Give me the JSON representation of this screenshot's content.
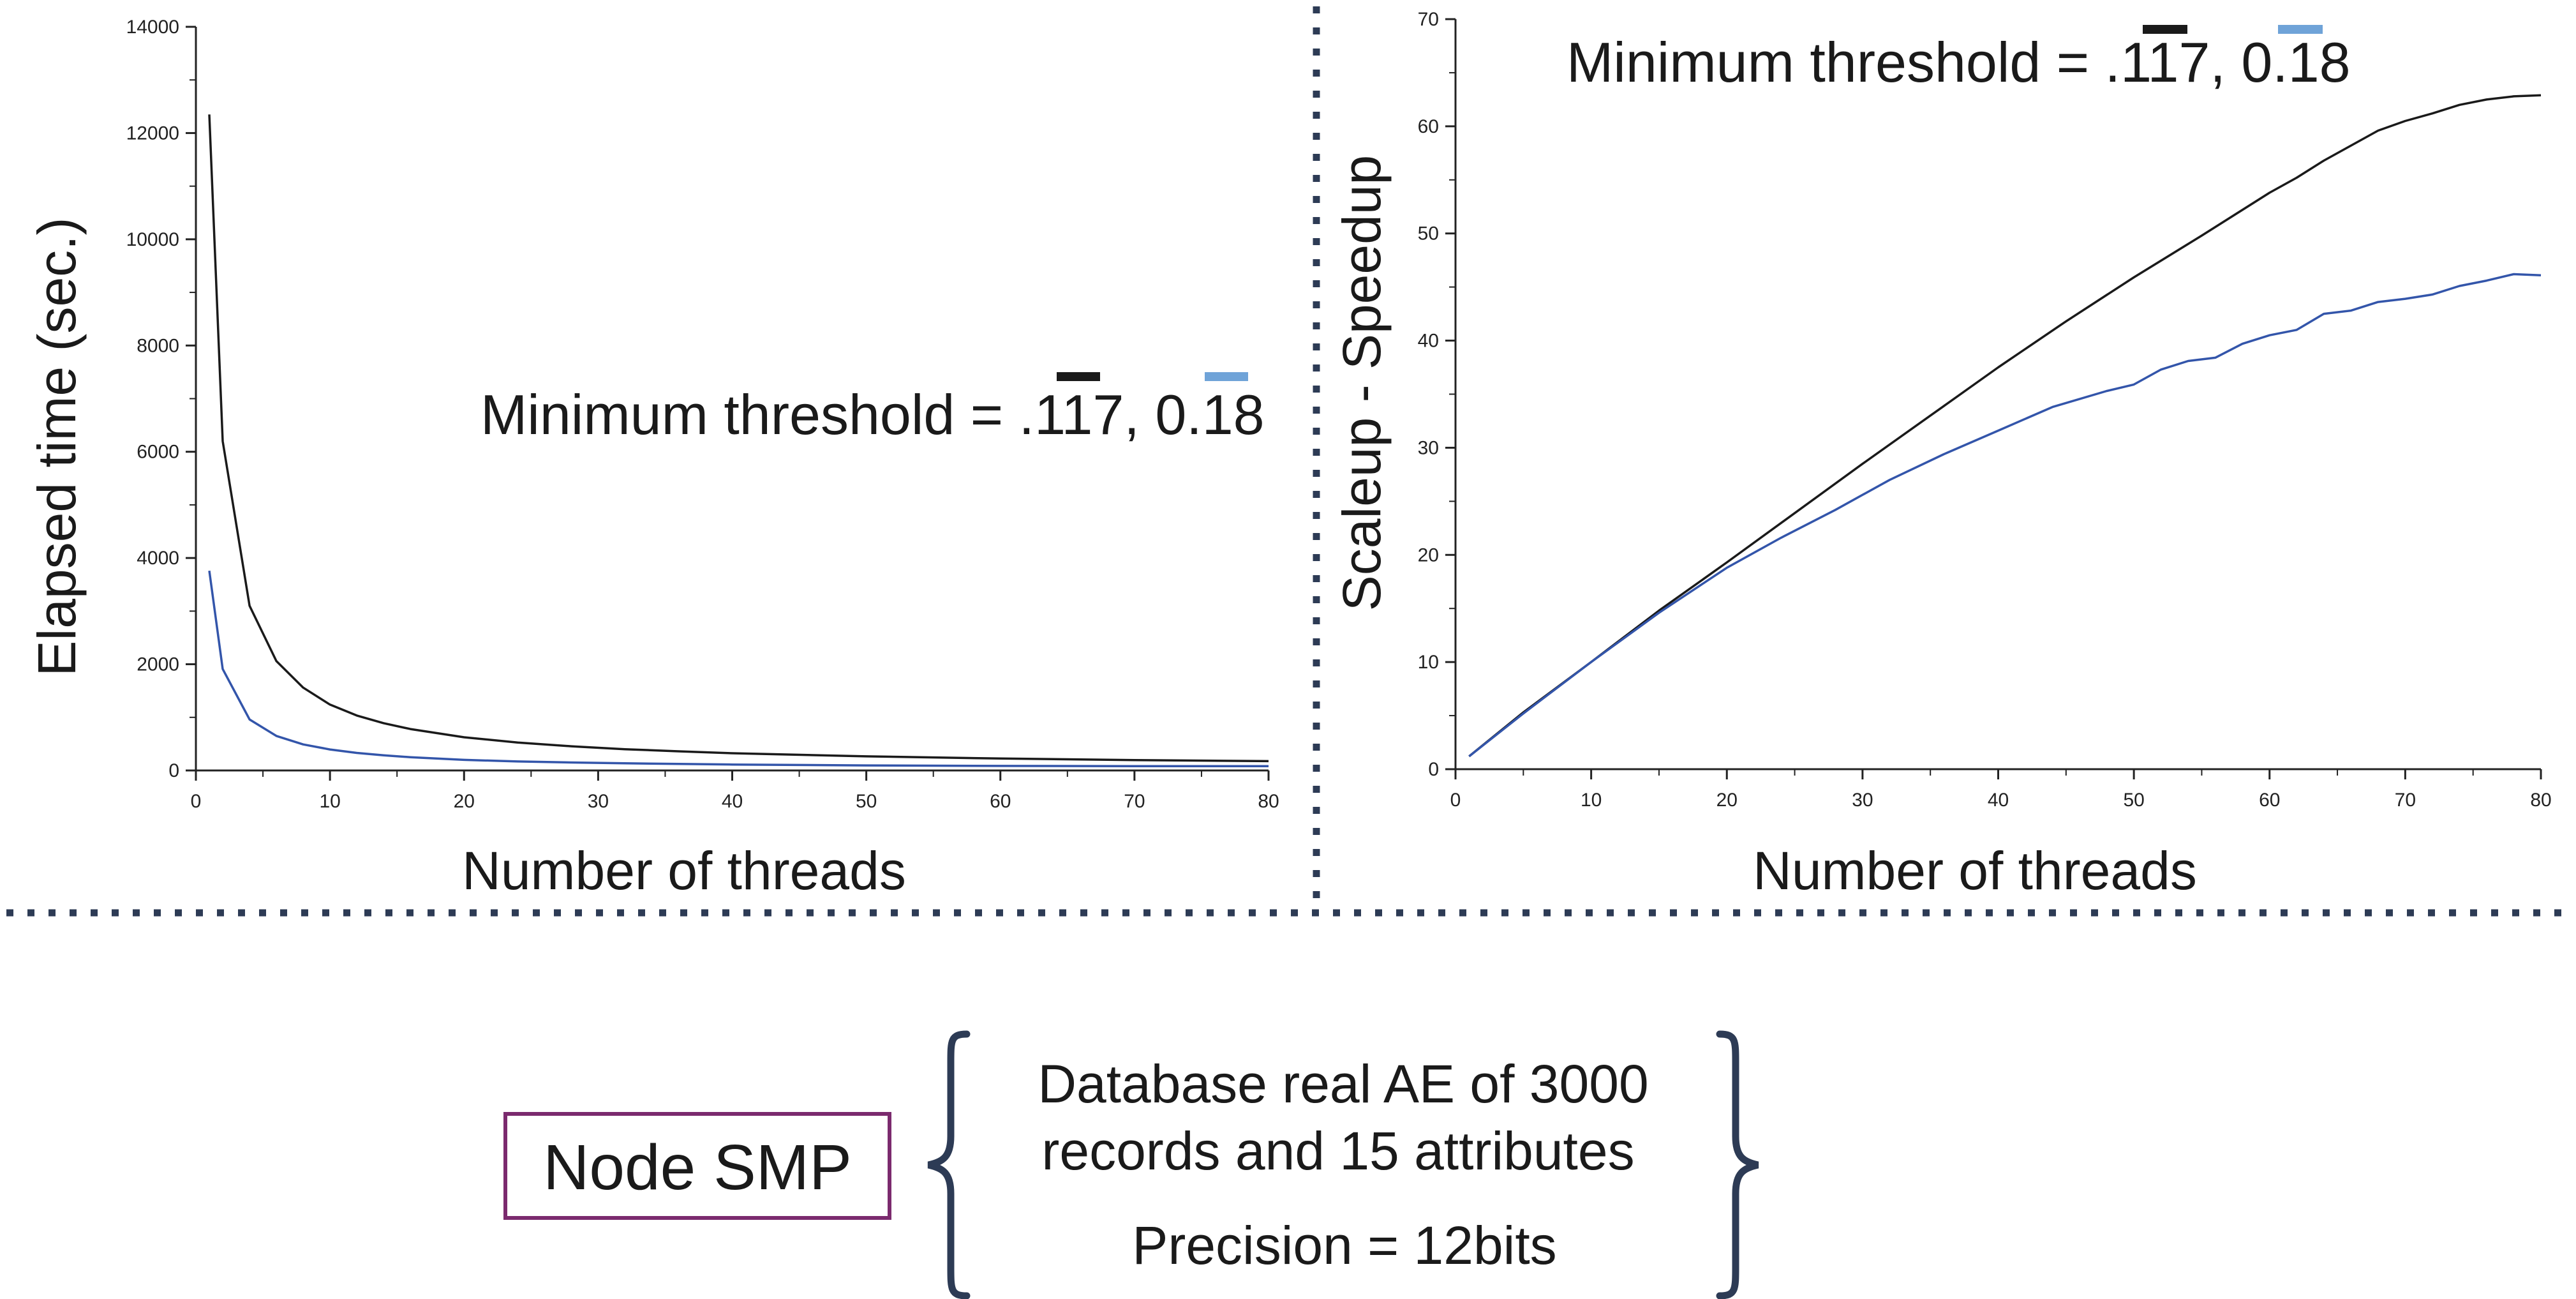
{
  "chart_data": [
    {
      "type": "line",
      "xlabel": "Number of threads",
      "ylabel": "Elapsed time (sec.)",
      "xlim": [
        0,
        80
      ],
      "ylim": [
        0,
        14000
      ],
      "xticks": [
        "0",
        "10",
        "20",
        "30",
        "40",
        "50",
        "60",
        "70",
        "80"
      ],
      "yticks": [
        "0",
        "2000",
        "4000",
        "6000",
        "8000",
        "10000",
        "12000",
        "14000"
      ],
      "annotation": {
        "prefix": "Minimum threshold = .",
        "mid": "17, 0.",
        "suffix": "8",
        "d1": "1",
        "d2": "1"
      },
      "grid": false,
      "series": [
        {
          "color": "#1a1a1a",
          "x": [
            1,
            2,
            4,
            6,
            8,
            10,
            12,
            14,
            16,
            20,
            24,
            28,
            32,
            36,
            40,
            50,
            60,
            70,
            80
          ],
          "y": [
            12350,
            6200,
            3100,
            2060,
            1560,
            1240,
            1035,
            890,
            780,
            625,
            525,
            455,
            400,
            360,
            325,
            265,
            225,
            195,
            175
          ]
        },
        {
          "color": "#3355aa",
          "x": [
            1,
            2,
            4,
            6,
            8,
            10,
            12,
            14,
            16,
            20,
            24,
            28,
            32,
            36,
            40,
            50,
            60,
            70,
            80
          ],
          "y": [
            3760,
            1910,
            960,
            650,
            490,
            395,
            330,
            285,
            250,
            200,
            170,
            150,
            135,
            122,
            112,
            95,
            85,
            80,
            80
          ]
        }
      ]
    },
    {
      "type": "line",
      "xlabel": "Number of threads",
      "ylabel": "Scaleup - Speedup",
      "xlim": [
        0,
        80
      ],
      "ylim": [
        0,
        70
      ],
      "xticks": [
        "0",
        "10",
        "20",
        "30",
        "40",
        "50",
        "60",
        "70",
        "80"
      ],
      "yticks": [
        "0",
        "10",
        "20",
        "30",
        "40",
        "50",
        "60",
        "70"
      ],
      "annotation": {
        "prefix": "Minimum threshold = .",
        "mid": "17, 0.",
        "suffix": "8",
        "d1": "1",
        "d2": "1"
      },
      "grid": false,
      "series": [
        {
          "color": "#1a1a1a",
          "x": [
            1,
            5,
            10,
            15,
            20,
            25,
            30,
            35,
            40,
            45,
            50,
            55,
            60,
            62,
            64,
            66,
            68,
            70,
            72,
            74,
            76,
            78,
            80
          ],
          "y": [
            1.2,
            5.3,
            10.0,
            14.8,
            19.3,
            23.9,
            28.5,
            33.0,
            37.5,
            41.8,
            45.9,
            49.8,
            53.8,
            55.2,
            56.8,
            58.2,
            59.6,
            60.5,
            61.2,
            62.0,
            62.5,
            62.8,
            62.9
          ]
        },
        {
          "color": "#3355aa",
          "x": [
            1,
            5,
            10,
            15,
            20,
            24,
            28,
            32,
            36,
            40,
            44,
            48,
            50,
            52,
            54,
            56,
            58,
            60,
            62,
            64,
            66,
            68,
            70,
            72,
            74,
            76,
            78,
            80
          ],
          "y": [
            1.2,
            5.2,
            10.0,
            14.6,
            18.8,
            21.6,
            24.2,
            27.0,
            29.4,
            31.6,
            33.8,
            35.3,
            35.9,
            37.3,
            38.1,
            38.4,
            39.7,
            40.5,
            41.0,
            42.5,
            42.8,
            43.6,
            43.9,
            44.3,
            45.1,
            45.6,
            46.2,
            46.1
          ]
        }
      ]
    }
  ],
  "colors": {
    "overline_black": "#1a1a1a",
    "overline_blue": "#6fa3d8",
    "separator": "#2d3b55",
    "node_box_border": "#7b2a6e",
    "brace": "#2d3b55"
  },
  "node": {
    "label": "Node SMP"
  },
  "info": {
    "line1": "Database real AE of 3000",
    "line2": "records and 15 attributes",
    "line3": "Precision = 12bits"
  }
}
